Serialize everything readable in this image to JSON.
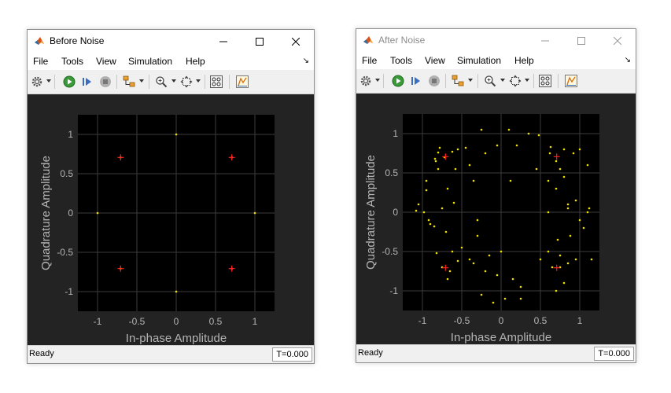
{
  "windows": [
    {
      "title": "Before Noise",
      "active": true,
      "menu": [
        "File",
        "Tools",
        "View",
        "Simulation",
        "Help"
      ],
      "plot": {
        "xlabel": "In-phase Amplitude",
        "ylabel": "Quadrature Amplitude",
        "xticks": [
          "-1",
          "-0.5",
          "0",
          "0.5",
          "1"
        ],
        "yticks": [
          "1",
          "0.5",
          "0",
          "-0.5",
          "-1"
        ]
      },
      "status": "Ready",
      "time": "T=0.000"
    },
    {
      "title": "After Noise",
      "active": false,
      "menu": [
        "File",
        "Tools",
        "View",
        "Simulation",
        "Help"
      ],
      "plot": {
        "xlabel": "In-phase Amplitude",
        "ylabel": "Quadrature Amplitude",
        "xticks": [
          "-1",
          "-0.5",
          "0",
          "0.5",
          "1"
        ],
        "yticks": [
          "1",
          "0.5",
          "0",
          "-0.5",
          "-1"
        ]
      },
      "status": "Ready",
      "time": "T=0.000"
    }
  ],
  "colors": {
    "plot_bg": "#000000",
    "panel_bg": "#232323",
    "grid": "#3c3c3c",
    "axis_text": "#b4b4b4",
    "points": "#f0e000",
    "reference": "#ff2020"
  },
  "chart_data": [
    {
      "type": "scatter",
      "xlim": [
        -1.25,
        1.25
      ],
      "ylim": [
        -1.25,
        1.25
      ],
      "grid": true,
      "reference": [
        [
          0.707,
          0.707
        ],
        [
          -0.707,
          0.707
        ],
        [
          -0.707,
          -0.707
        ],
        [
          0.707,
          -0.707
        ]
      ],
      "points": [
        [
          1,
          0
        ],
        [
          0,
          1
        ],
        [
          -1,
          0
        ],
        [
          0,
          -1
        ],
        [
          0.707,
          0.707
        ],
        [
          -0.707,
          0.707
        ],
        [
          -0.707,
          -0.707
        ],
        [
          0.707,
          -0.707
        ]
      ]
    },
    {
      "type": "scatter",
      "xlim": [
        -1.25,
        1.25
      ],
      "ylim": [
        -1.25,
        1.25
      ],
      "grid": true,
      "reference": [
        [
          0.707,
          0.707
        ],
        [
          -0.707,
          0.707
        ],
        [
          -0.707,
          -0.707
        ],
        [
          0.707,
          -0.707
        ]
      ],
      "points": [
        [
          -0.78,
          0.82
        ],
        [
          -0.8,
          0.76
        ],
        [
          -0.83,
          0.65
        ],
        [
          -0.72,
          0.7
        ],
        [
          -0.62,
          0.77
        ],
        [
          -0.55,
          0.8
        ],
        [
          -0.8,
          0.55
        ],
        [
          -0.84,
          0.68
        ],
        [
          -0.58,
          0.55
        ],
        [
          -0.45,
          0.82
        ],
        [
          -0.4,
          0.6
        ],
        [
          -0.2,
          0.75
        ],
        [
          -0.35,
          0.4
        ],
        [
          -0.25,
          1.05
        ],
        [
          -0.05,
          0.85
        ],
        [
          0.1,
          1.05
        ],
        [
          0.2,
          0.85
        ],
        [
          0.35,
          1.0
        ],
        [
          0.12,
          0.4
        ],
        [
          0.45,
          0.55
        ],
        [
          0.48,
          0.98
        ],
        [
          0.63,
          0.83
        ],
        [
          0.62,
          0.75
        ],
        [
          0.8,
          0.8
        ],
        [
          0.92,
          0.75
        ],
        [
          0.7,
          0.65
        ],
        [
          0.8,
          0.45
        ],
        [
          0.6,
          0.4
        ],
        [
          0.75,
          0.55
        ],
        [
          1.0,
          0.8
        ],
        [
          1.1,
          0.6
        ],
        [
          -0.95,
          0.4
        ],
        [
          -1.05,
          0.1
        ],
        [
          -0.95,
          0.28
        ],
        [
          -0.98,
          0.0
        ],
        [
          -1.08,
          0.02
        ],
        [
          -0.85,
          -0.18
        ],
        [
          -0.75,
          0.05
        ],
        [
          -0.68,
          0.3
        ],
        [
          -0.6,
          0.12
        ],
        [
          -0.9,
          -0.15
        ],
        [
          -0.7,
          -0.25
        ],
        [
          -0.82,
          -0.52
        ],
        [
          -0.62,
          -0.5
        ],
        [
          -0.75,
          -0.7
        ],
        [
          -0.68,
          -0.85
        ],
        [
          -0.55,
          -0.62
        ],
        [
          -0.5,
          -0.45
        ],
        [
          -0.4,
          -0.6
        ],
        [
          -0.3,
          -0.1
        ],
        [
          -0.3,
          -0.3
        ],
        [
          -0.15,
          -0.55
        ],
        [
          -0.2,
          -0.75
        ],
        [
          -0.35,
          -0.65
        ],
        [
          -0.05,
          -0.8
        ],
        [
          0.0,
          -0.5
        ],
        [
          -0.1,
          -1.15
        ],
        [
          0.05,
          -1.1
        ],
        [
          -0.25,
          -1.05
        ],
        [
          0.15,
          -0.85
        ],
        [
          0.25,
          -0.95
        ],
        [
          0.25,
          -1.1
        ],
        [
          0.6,
          -0.5
        ],
        [
          0.75,
          -0.7
        ],
        [
          0.7,
          -1.0
        ],
        [
          0.85,
          -0.65
        ],
        [
          0.95,
          -0.6
        ],
        [
          0.8,
          -0.9
        ],
        [
          1.15,
          -0.6
        ],
        [
          0.65,
          -0.7
        ],
        [
          0.6,
          0.0
        ],
        [
          0.85,
          0.05
        ],
        [
          0.88,
          -0.3
        ],
        [
          0.72,
          -0.35
        ],
        [
          1.1,
          0.0
        ],
        [
          1.05,
          -0.2
        ],
        [
          1.12,
          0.05
        ],
        [
          0.85,
          0.1
        ],
        [
          0.95,
          0.15
        ],
        [
          0.7,
          0.3
        ],
        [
          0.75,
          -0.55
        ],
        [
          1.0,
          -0.1
        ],
        [
          -0.65,
          -0.75
        ],
        [
          -0.92,
          -0.1
        ],
        [
          0.5,
          -0.6
        ]
      ]
    }
  ]
}
